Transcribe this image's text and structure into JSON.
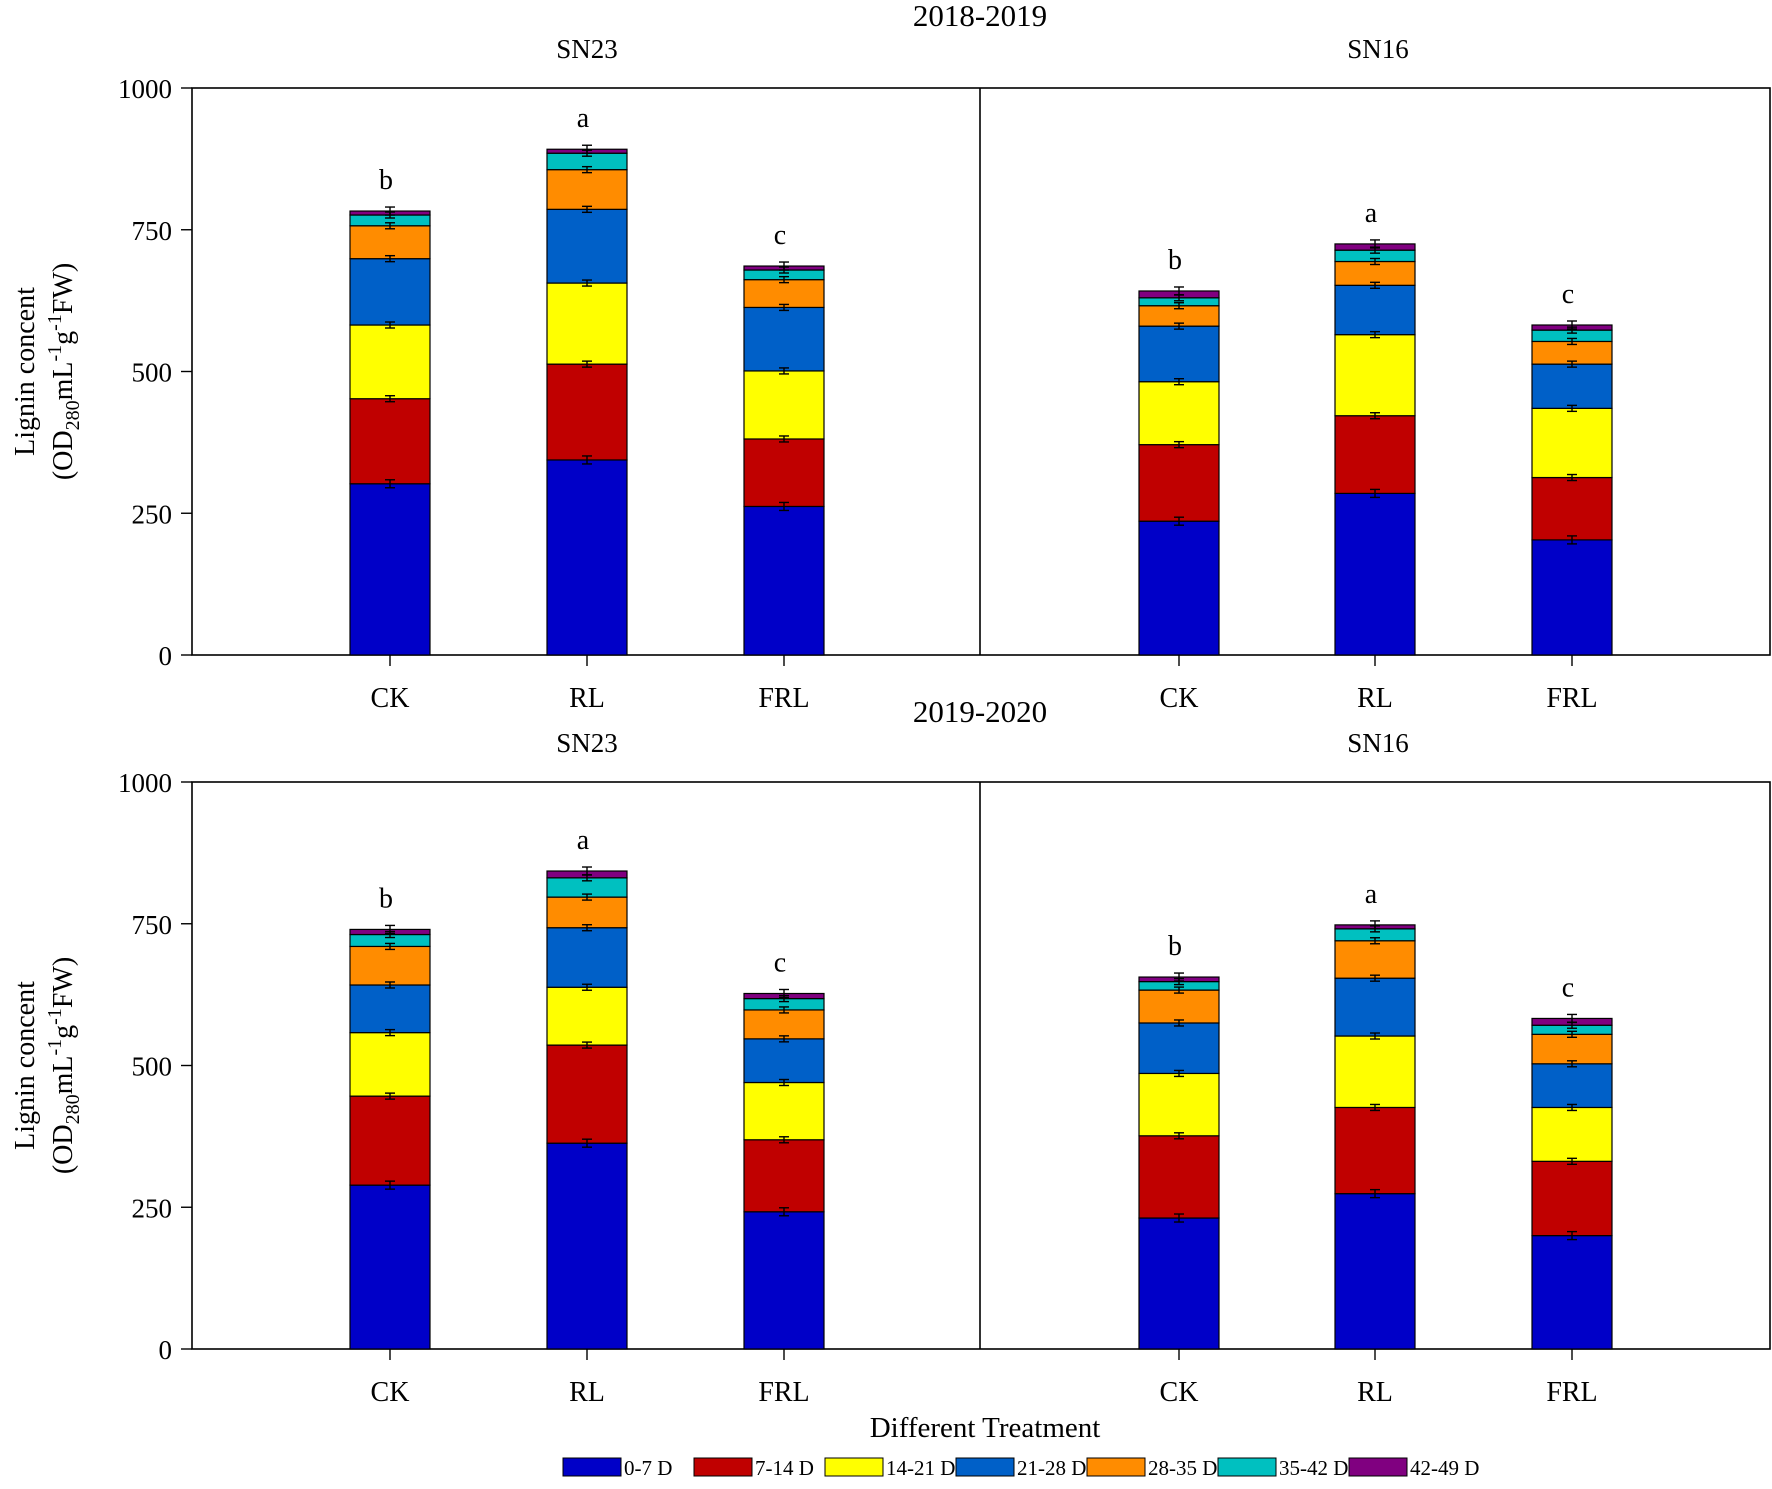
{
  "chart_data": {
    "type": "bar",
    "stacked": true,
    "xlabel": "Different Treatment",
    "ylabel_main": "Lignin concent",
    "ylabel_unit": {
      "open": "(OD",
      "sub1": "280",
      "mid1": "mL",
      "sup1": "-1",
      "mid2": "g",
      "sup2": "-1",
      "close": "FW)"
    },
    "ylim": [
      0,
      1000
    ],
    "yticks": [
      "0",
      "250",
      "500",
      "750",
      "1000"
    ],
    "ytick_values": [
      0,
      250,
      500,
      750,
      1000
    ],
    "categories": [
      "CK",
      "RL",
      "FRL"
    ],
    "series": [
      {
        "name": "0-7 D",
        "color": "#0000c8"
      },
      {
        "name": "7-14 D",
        "color": "#c00000"
      },
      {
        "name": "14-21 D",
        "color": "#ffff00"
      },
      {
        "name": "21-28 D",
        "color": "#0060c8"
      },
      {
        "name": "28-35 D",
        "color": "#ff8c00"
      },
      {
        "name": "35-42 D",
        "color": "#00c0c0"
      },
      {
        "name": "42-49 D",
        "color": "#800080"
      }
    ],
    "panels": [
      {
        "title": "2018-2019",
        "groups": [
          {
            "cultivar": "SN23",
            "bars": [
              {
                "category": "CK",
                "letter": "b",
                "values": [
                  302,
                  150,
                  130,
                  117,
                  58,
                  19,
                  7
                ]
              },
              {
                "category": "RL",
                "letter": "a",
                "values": [
                  344,
                  169,
                  143,
                  130,
                  70,
                  29,
                  7
                ]
              },
              {
                "category": "FRL",
                "letter": "c",
                "values": [
                  262,
                  119,
                  120,
                  112,
                  49,
                  17,
                  7
                ]
              }
            ]
          },
          {
            "cultivar": "SN16",
            "bars": [
              {
                "category": "CK",
                "letter": "b",
                "values": [
                  236,
                  135,
                  111,
                  98,
                  36,
                  14,
                  12
                ]
              },
              {
                "category": "RL",
                "letter": "a",
                "values": [
                  285,
                  137,
                  143,
                  87,
                  42,
                  20,
                  11
                ]
              },
              {
                "category": "FRL",
                "letter": "c",
                "values": [
                  203,
                  110,
                  122,
                  78,
                  40,
                  20,
                  9
                ]
              }
            ]
          }
        ]
      },
      {
        "title": "2019-2020",
        "groups": [
          {
            "cultivar": "SN23",
            "bars": [
              {
                "category": "CK",
                "letter": "b",
                "values": [
                  289,
                  157,
                  112,
                  84,
                  68,
                  21,
                  9
                ]
              },
              {
                "category": "RL",
                "letter": "a",
                "values": [
                  363,
                  173,
                  102,
                  105,
                  54,
                  34,
                  12
                ]
              },
              {
                "category": "FRL",
                "letter": "c",
                "values": [
                  242,
                  127,
                  101,
                  77,
                  51,
                  20,
                  9
                ]
              }
            ]
          },
          {
            "cultivar": "SN16",
            "bars": [
              {
                "category": "CK",
                "letter": "b",
                "values": [
                  231,
                  145,
                  110,
                  89,
                  58,
                  15,
                  8
                ]
              },
              {
                "category": "RL",
                "letter": "a",
                "values": [
                  274,
                  152,
                  126,
                  102,
                  66,
                  21,
                  7
                ]
              },
              {
                "category": "FRL",
                "letter": "c",
                "values": [
                  200,
                  131,
                  95,
                  77,
                  52,
                  16,
                  12
                ]
              }
            ]
          }
        ]
      }
    ]
  }
}
